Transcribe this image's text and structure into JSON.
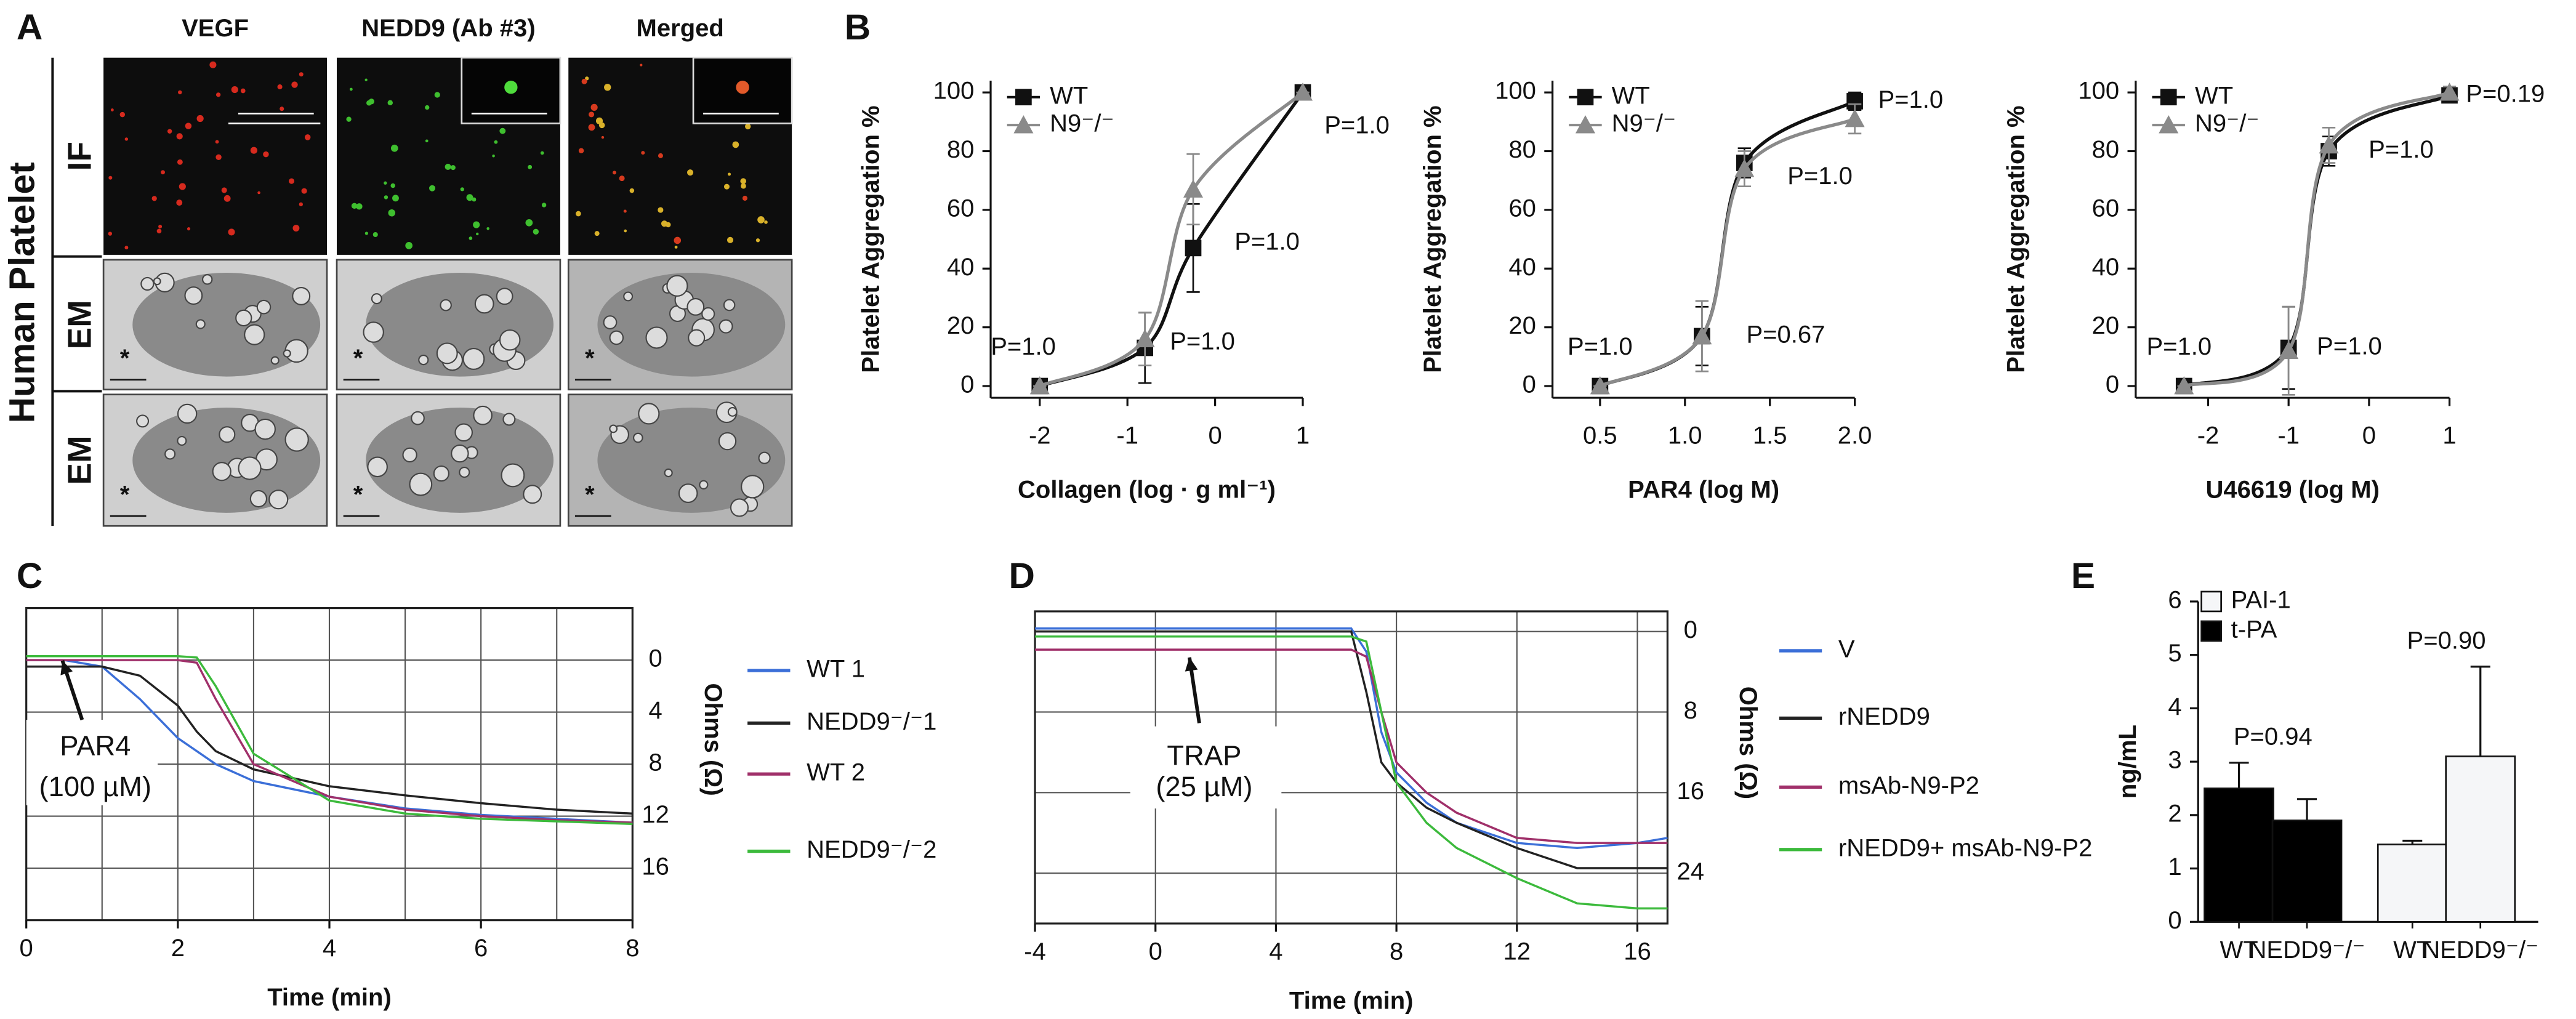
{
  "panel_labels": [
    "A",
    "B",
    "C",
    "D",
    "E"
  ],
  "panel_a": {
    "columns": [
      "VEGF",
      "NEDD9 (Ab #3)",
      "Merged"
    ],
    "rows": [
      "IF",
      "EM",
      "EM"
    ],
    "side_label": "Human Platelet"
  },
  "chart_data": [
    {
      "type": "line",
      "x_label": "Collagen (log · g ml⁻¹)",
      "y_label": "Platelet Aggregation %",
      "x": [
        -2,
        -0.8,
        -0.25,
        1
      ],
      "series": [
        {
          "name": "WT",
          "color": "#111111",
          "marker": "square",
          "values": [
            0,
            13,
            47,
            100
          ],
          "errors": [
            0,
            12,
            15,
            0
          ]
        },
        {
          "name": "N9⁻/⁻",
          "color": "#8a8a8a",
          "marker": "triangle",
          "values": [
            0,
            16,
            67,
            100
          ],
          "errors": [
            0,
            9,
            12,
            0
          ]
        }
      ],
      "p_labels": [
        "P=1.0",
        "P=1.0",
        "P=1.0",
        "P=1.0"
      ],
      "xlim": [
        -2.56,
        1.0
      ],
      "xticks": [
        -2,
        -1,
        0,
        1
      ],
      "ylim": [
        -4,
        104
      ],
      "yticks": [
        0,
        20,
        40,
        60,
        80,
        100
      ],
      "legend": "upper left",
      "smooth": true
    },
    {
      "type": "line",
      "x_label": "PAR4 (log M)",
      "y_label": "Platelet Aggregation %",
      "x": [
        0.5,
        1.1,
        1.35,
        2.0
      ],
      "series": [
        {
          "name": "WT",
          "color": "#111111",
          "marker": "square",
          "values": [
            0,
            17,
            76,
            97
          ],
          "errors": [
            0,
            10,
            5,
            3
          ]
        },
        {
          "name": "N9⁻/⁻",
          "color": "#8a8a8a",
          "marker": "triangle",
          "values": [
            0,
            17,
            74,
            91
          ],
          "errors": [
            0,
            12,
            6,
            5
          ]
        }
      ],
      "p_labels": [
        "P=1.0",
        "P=0.67",
        "P=1.0",
        "P=1.0"
      ],
      "xlim": [
        0.22,
        2.0
      ],
      "xticks": [
        0.5,
        {
          "value": 1,
          "label": "1.0"
        },
        1.5,
        {
          "value": 2,
          "label": "2.0"
        }
      ],
      "ylim": [
        -4,
        104
      ],
      "yticks": [
        0,
        20,
        40,
        60,
        80,
        100
      ],
      "legend": "upper left",
      "smooth": true
    },
    {
      "type": "line",
      "x_label": "U46619 (log M)",
      "y_label": "Platelet Aggregation %",
      "x": [
        -2.3,
        -1,
        -0.5,
        1
      ],
      "series": [
        {
          "name": "WT",
          "color": "#111111",
          "marker": "square",
          "values": [
            0,
            13,
            80,
            99
          ],
          "errors": [
            0,
            14,
            5,
            2
          ]
        },
        {
          "name": "N9⁻/⁻",
          "color": "#8a8a8a",
          "marker": "triangle",
          "values": [
            0,
            12,
            82,
            100
          ],
          "errors": [
            0,
            15,
            6,
            2
          ]
        }
      ],
      "p_labels": [
        "P=1.0",
        "P=1.0",
        "P=1.0",
        "P=0.19"
      ],
      "xlim": [
        -2.9,
        1.0
      ],
      "xticks": [
        -2,
        -1,
        0,
        1
      ],
      "ylim": [
        -4,
        104
      ],
      "yticks": [
        0,
        20,
        40,
        60,
        80,
        100
      ],
      "legend": "upper left",
      "smooth": true
    },
    {
      "type": "line",
      "x_label": "Time (min)",
      "y_label": "Ohms (Ω)",
      "y_axis_side": "right",
      "y_reversed": true,
      "grid": true,
      "frame": true,
      "annotation": [
        "PAR4",
        "(100 µM)"
      ],
      "x": [
        0,
        0.5,
        1,
        1.5,
        2,
        2.25,
        2.5,
        3,
        4,
        5,
        6,
        7,
        8
      ],
      "series": [
        {
          "name": "WT 1",
          "color": "#3b6fd8",
          "values": [
            0,
            0,
            0.5,
            3,
            6,
            7,
            8,
            9.3,
            10.5,
            11.4,
            11.9,
            12.2,
            12.5
          ]
        },
        {
          "name": "NEDD9⁻/⁻1",
          "color": "#222222",
          "values": [
            0.5,
            0.5,
            0.5,
            1.2,
            3.5,
            5.5,
            7,
            8.4,
            9.7,
            10.4,
            11,
            11.5,
            11.8
          ]
        },
        {
          "name": "WT 2",
          "color": "#a0306a",
          "values": [
            0,
            0,
            0,
            0,
            0,
            0.2,
            3,
            8,
            10.5,
            11.5,
            12,
            12.3,
            12.5
          ]
        },
        {
          "name": "NEDD9⁻/⁻2",
          "color": "#3cba3c",
          "values": [
            -0.3,
            -0.3,
            -0.3,
            -0.3,
            -0.3,
            -0.2,
            2,
            7.2,
            10.8,
            11.8,
            12.2,
            12.4,
            12.6
          ]
        }
      ],
      "xlim": [
        0,
        8
      ],
      "xticks": [
        0,
        2,
        4,
        6,
        8
      ],
      "xgrid": [
        0,
        1,
        2,
        3,
        4,
        5,
        6,
        7,
        8
      ],
      "ylim": [
        -4,
        20
      ],
      "yticks": [
        0,
        4,
        8,
        12,
        16
      ],
      "legend": "right"
    },
    {
      "type": "line",
      "x_label": "Time (min)",
      "y_label": "Ohms (Ω)",
      "y_axis_side": "right",
      "y_reversed": true,
      "grid": true,
      "frame": true,
      "annotation": [
        "TRAP",
        "(25 µM)"
      ],
      "x": [
        -4,
        0,
        6,
        6.5,
        7,
        7.5,
        8,
        9,
        10,
        12,
        14,
        16,
        17
      ],
      "series": [
        {
          "name": "V",
          "color": "#3b6fd8",
          "values": [
            -0.3,
            -0.3,
            -0.3,
            -0.3,
            2,
            10,
            14,
            17,
            19,
            21,
            21.5,
            21,
            20.5
          ]
        },
        {
          "name": "rNEDD9",
          "color": "#222222",
          "values": [
            0,
            0,
            0,
            0,
            6,
            13,
            15,
            17.5,
            19,
            21.5,
            23.5,
            23.5,
            23.5
          ]
        },
        {
          "name": "msAb-N9-P2",
          "color": "#a0306a",
          "values": [
            1.8,
            1.8,
            1.8,
            1.8,
            2.5,
            8,
            13,
            16,
            18,
            20.5,
            21,
            21,
            21
          ]
        },
        {
          "name": "rNEDD9+ msAb-N9-P2",
          "color": "#3cba3c",
          "values": [
            0.5,
            0.5,
            0.5,
            0.5,
            1,
            8,
            15,
            19,
            21.5,
            24.5,
            27,
            27.5,
            27.5
          ]
        }
      ],
      "xlim": [
        -4,
        17
      ],
      "xticks": [
        -4,
        0,
        4,
        8,
        12,
        16
      ],
      "xgrid": [
        -4,
        0,
        4,
        8,
        12,
        16
      ],
      "ylim": [
        -2,
        29
      ],
      "yticks": [
        0,
        8,
        16,
        24
      ],
      "legend": "right"
    },
    {
      "type": "bar",
      "y_label": "ng/mL",
      "categories": [
        "WT",
        "NEDD9⁻/⁻",
        "WT",
        "NEDD9⁻/⁻"
      ],
      "series": [
        {
          "name": "PAI-1",
          "color": "#f5f6f8",
          "values": [
            null,
            null,
            1.45,
            3.1
          ],
          "errors": [
            null,
            null,
            0.07,
            1.68
          ]
        },
        {
          "name": "t-PA",
          "color": "#000000",
          "values": [
            2.5,
            1.9,
            null,
            null
          ],
          "errors": [
            0.48,
            0.4,
            null,
            null
          ]
        }
      ],
      "annotations": [
        "P=0.94",
        "P=0.90"
      ],
      "ylim": [
        0,
        6
      ],
      "yticks": [
        0,
        1,
        2,
        3,
        4,
        5,
        6
      ],
      "legend": "upper left"
    }
  ]
}
